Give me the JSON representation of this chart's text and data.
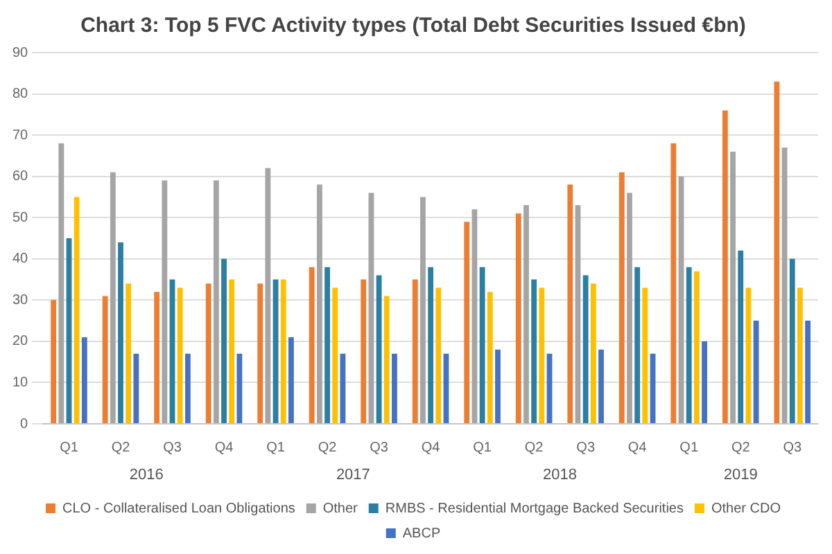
{
  "chart_data": {
    "type": "bar",
    "title": "Chart 3: Top 5 FVC Activity types (Total Debt Securities Issued €bn)",
    "categories": [
      "Q1",
      "Q2",
      "Q3",
      "Q4",
      "Q1",
      "Q2",
      "Q3",
      "Q4",
      "Q1",
      "Q2",
      "Q3",
      "Q4",
      "Q1",
      "Q2",
      "Q3"
    ],
    "series": [
      {
        "name": "CLO - Collateralised Loan Obligations",
        "color": "#ed7d31",
        "values": [
          30,
          31,
          32,
          34,
          34,
          38,
          35,
          35,
          49,
          51,
          58,
          61,
          68,
          76,
          83
        ]
      },
      {
        "name": "Other",
        "color": "#a5a5a5",
        "values": [
          68,
          61,
          59,
          59,
          62,
          58,
          56,
          55,
          52,
          53,
          53,
          56,
          60,
          66,
          67
        ]
      },
      {
        "name": "RMBS - Residential Mortgage Backed Securities",
        "color": "#2a7fa3",
        "values": [
          45,
          44,
          35,
          40,
          35,
          38,
          36,
          38,
          38,
          35,
          36,
          38,
          38,
          42,
          40
        ]
      },
      {
        "name": "Other CDO",
        "color": "#ffc000",
        "values": [
          55,
          34,
          33,
          35,
          35,
          33,
          31,
          33,
          32,
          33,
          34,
          33,
          37,
          33,
          33
        ]
      },
      {
        "name": "ABCP",
        "color": "#4472c4",
        "values": [
          21,
          17,
          17,
          17,
          21,
          17,
          17,
          17,
          18,
          17,
          18,
          17,
          20,
          25,
          25
        ]
      }
    ],
    "annotations": [
      "2016",
      "2017",
      "2018",
      "2019"
    ],
    "ylim": [
      0,
      90
    ],
    "yticks": [
      0,
      10,
      20,
      30,
      40,
      50,
      60,
      70,
      80,
      90
    ],
    "grid": "y",
    "legend": "bottom"
  }
}
